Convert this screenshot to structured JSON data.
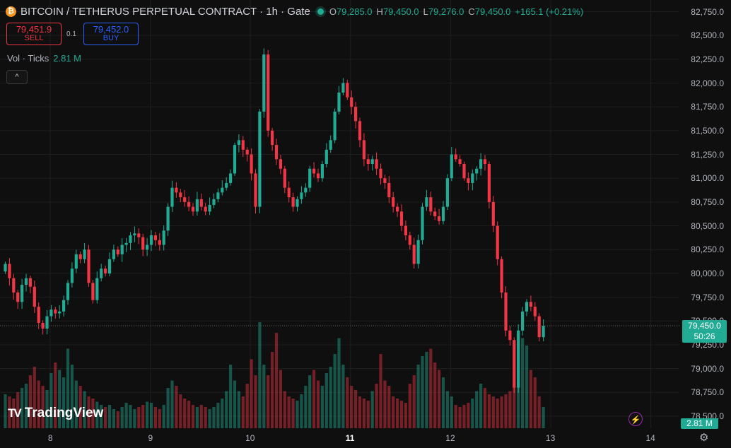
{
  "header": {
    "coin_glyph": "₿",
    "symbol": "BITCOIN / TETHERUS PERPETUAL CONTRACT · 1h · Gate",
    "ohlc": [
      {
        "k": "O",
        "v": "79,285.0"
      },
      {
        "k": "H",
        "v": "79,450.0"
      },
      {
        "k": "L",
        "v": "79,276.0"
      },
      {
        "k": "C",
        "v": "79,450.0"
      }
    ],
    "change": "+165.1 (+0.21%)"
  },
  "trade": {
    "sell_price": "79,451.9",
    "sell_label": "SELL",
    "spread": "0.1",
    "buy_price": "79,452.0",
    "buy_label": "BUY"
  },
  "volume": {
    "label": "Vol · Ticks",
    "value": "2.81 M",
    "badge": "2.81 M"
  },
  "collapse_icon": "^",
  "last_price": {
    "price": "79,450.0",
    "countdown": "50:26"
  },
  "logo_mark": "TV",
  "logo_text": "TradingView",
  "flash_icon": "⚡",
  "settings_icon": "⚙",
  "colors": {
    "up": "#22ab94",
    "down": "#f23645",
    "bg": "#0f0f0f",
    "grid": "#1e1e1e"
  },
  "chart_data": {
    "type": "candlestick",
    "interval": "1h",
    "price_axis": {
      "ylim": [
        78400,
        82900
      ],
      "ticks": [
        "82,750.0",
        "82,500.0",
        "82,250.0",
        "82,000.0",
        "81,750.0",
        "81,500.0",
        "81,250.0",
        "81,000.0",
        "80,750.0",
        "80,500.0",
        "80,250.0",
        "80,000.0",
        "79,750.0",
        "79,500.0",
        "79,250.0",
        "79,000.0",
        "78,750.0",
        "78,500.0"
      ]
    },
    "day_labels": [
      {
        "label": "8",
        "idx": 6
      },
      {
        "label": "9",
        "idx": 30
      },
      {
        "label": "10",
        "idx": 54
      },
      {
        "label": "11",
        "idx": 78
      },
      {
        "label": "12",
        "idx": 102
      },
      {
        "label": "13",
        "idx": 126
      },
      {
        "label": "14",
        "idx": 150
      }
    ],
    "closes": [
      80100,
      79950,
      79800,
      79700,
      79880,
      79950,
      79860,
      79650,
      79480,
      79420,
      79550,
      79620,
      79580,
      79600,
      79720,
      79900,
      80050,
      80200,
      80150,
      80250,
      79900,
      79720,
      79950,
      80050,
      80000,
      80150,
      80250,
      80200,
      80300,
      80320,
      80400,
      80420,
      80380,
      80250,
      80300,
      80400,
      80350,
      80300,
      80450,
      80700,
      80900,
      80850,
      80800,
      80750,
      80700,
      80650,
      80780,
      80700,
      80650,
      80720,
      80780,
      80850,
      80900,
      80950,
      81050,
      81350,
      81400,
      81300,
      81250,
      81050,
      80700,
      81700,
      82300,
      81500,
      81350,
      81200,
      81100,
      80900,
      80800,
      80700,
      80780,
      80850,
      80900,
      81100,
      81050,
      81000,
      81150,
      81300,
      81400,
      81700,
      81900,
      82000,
      81850,
      81750,
      81600,
      81400,
      81200,
      81150,
      81200,
      81100,
      81000,
      80950,
      80800,
      80700,
      80650,
      80500,
      80400,
      80300,
      80100,
      80350,
      80700,
      80800,
      80650,
      80600,
      80550,
      80700,
      81000,
      81250,
      81200,
      81150,
      81000,
      80950,
      81050,
      81100,
      81200,
      81150,
      80750,
      80500,
      80150,
      79800,
      79400,
      79300,
      78800,
      79400,
      79600,
      79700,
      79650,
      79550,
      79330,
      79450
    ],
    "volumes": [
      0.32,
      0.3,
      0.28,
      0.34,
      0.38,
      0.42,
      0.5,
      0.58,
      0.45,
      0.4,
      0.36,
      0.52,
      0.62,
      0.55,
      0.48,
      0.75,
      0.6,
      0.45,
      0.4,
      0.35,
      0.3,
      0.28,
      0.25,
      0.22,
      0.2,
      0.22,
      0.18,
      0.16,
      0.2,
      0.24,
      0.22,
      0.18,
      0.2,
      0.22,
      0.25,
      0.24,
      0.2,
      0.18,
      0.22,
      0.38,
      0.45,
      0.4,
      0.32,
      0.28,
      0.26,
      0.22,
      0.2,
      0.22,
      0.2,
      0.18,
      0.2,
      0.24,
      0.28,
      0.35,
      0.6,
      0.45,
      0.35,
      0.3,
      0.42,
      0.65,
      0.5,
      1.0,
      0.6,
      0.5,
      0.72,
      0.9,
      0.55,
      0.35,
      0.3,
      0.28,
      0.26,
      0.32,
      0.4,
      0.5,
      0.55,
      0.45,
      0.4,
      0.52,
      0.58,
      0.7,
      0.85,
      0.6,
      0.48,
      0.4,
      0.36,
      0.3,
      0.28,
      0.26,
      0.35,
      0.42,
      0.7,
      0.45,
      0.4,
      0.3,
      0.28,
      0.26,
      0.24,
      0.42,
      0.5,
      0.6,
      0.68,
      0.72,
      0.75,
      0.62,
      0.55,
      0.48,
      0.35,
      0.3,
      0.22,
      0.2,
      0.22,
      0.24,
      0.28,
      0.35,
      0.42,
      0.38,
      0.32,
      0.3,
      0.28,
      0.3,
      0.32,
      0.35,
      0.4,
      0.45,
      0.85,
      0.78,
      0.55,
      0.48,
      0.3,
      0.2
    ]
  }
}
